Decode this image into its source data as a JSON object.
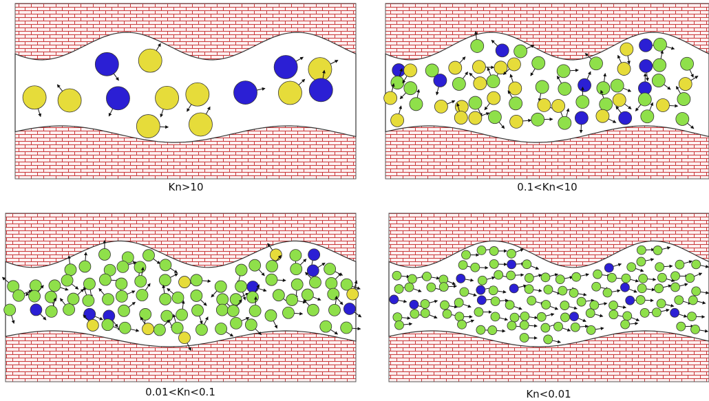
{
  "panels": [
    {
      "label": "Kn>10"
    },
    {
      "label": "0.1<Kn<10"
    },
    {
      "label": "0.01<Kn<0.1"
    },
    {
      "label": "Kn<0.01"
    }
  ]
}
